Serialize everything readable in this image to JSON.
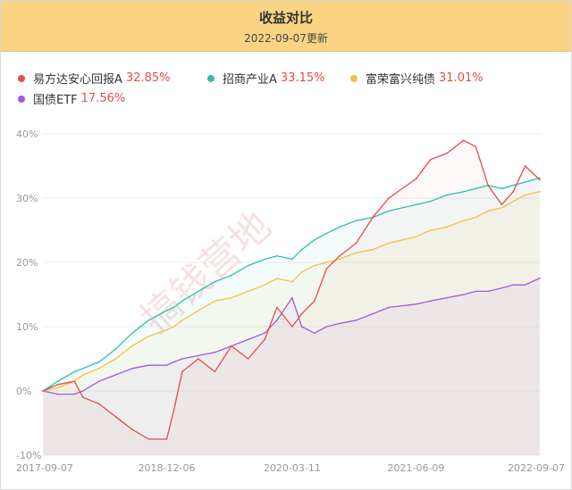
{
  "header": {
    "title": "收益对比",
    "subtitle": "2022-09-07更新"
  },
  "watermark": "搞钱营地",
  "legend": [
    {
      "name": "易方达安心回报A",
      "value": "32.85%",
      "color": "#e84b4b"
    },
    {
      "name": "招商产业A",
      "value": "33.15%",
      "color": "#2cc0b0"
    },
    {
      "name": "富荣富兴纯债",
      "value": "31.01%",
      "color": "#f2c240"
    },
    {
      "name": "国债ETF",
      "value": "17.56%",
      "color": "#a05ae0"
    }
  ],
  "chart_data": {
    "type": "line",
    "x_ticks": [
      "2017-09-07",
      "2018-12-06",
      "2020-03-11",
      "2021-06-09",
      "2022-09-07"
    ],
    "y_ticks": [
      "40%",
      "30%",
      "20%",
      "10%",
      "0%",
      "-10%"
    ],
    "ylim": [
      -10,
      40
    ],
    "x": [
      "2017-09-07",
      "2017-11-01",
      "2018-01-01",
      "2018-02-01",
      "2018-04-01",
      "2018-06-01",
      "2018-08-01",
      "2018-10-01",
      "2018-12-06",
      "2019-01-01",
      "2019-02-01",
      "2019-04-01",
      "2019-06-01",
      "2019-08-01",
      "2019-10-01",
      "2019-12-01",
      "2020-01-15",
      "2020-03-11",
      "2020-04-15",
      "2020-06-01",
      "2020-07-15",
      "2020-09-01",
      "2020-11-01",
      "2021-01-01",
      "2021-03-01",
      "2021-06-09",
      "2021-08-01",
      "2021-10-01",
      "2021-12-01",
      "2022-01-15",
      "2022-03-01",
      "2022-04-20",
      "2022-06-01",
      "2022-07-15",
      "2022-09-07"
    ],
    "series": [
      {
        "name": "易方达安心回报A",
        "color": "#e84b4b",
        "values": [
          0,
          1,
          1.5,
          -1,
          -2,
          -4,
          -6,
          -7.5,
          -7.5,
          -3,
          3,
          5,
          3,
          7,
          5,
          8,
          13,
          10,
          12,
          14,
          19,
          21,
          23,
          27,
          30,
          33,
          36,
          37,
          39,
          38,
          32,
          29,
          31,
          35,
          32.85
        ]
      },
      {
        "name": "招商产业A",
        "color": "#2cc0b0",
        "values": [
          0,
          1.5,
          3,
          3.5,
          4.5,
          6.5,
          9,
          11,
          12.5,
          13,
          14,
          15.5,
          17,
          18,
          19.5,
          20.5,
          21,
          20.5,
          22,
          23.5,
          24.5,
          25.5,
          26.5,
          27,
          28,
          29,
          29.5,
          30.5,
          31,
          31.5,
          32,
          31.5,
          32,
          32.5,
          33.15
        ]
      },
      {
        "name": "富荣富兴纯债",
        "color": "#f2c240",
        "values": [
          0,
          0.5,
          1.5,
          2.5,
          3.5,
          5,
          7,
          8.5,
          9.5,
          10,
          11,
          12.5,
          14,
          14.5,
          15.5,
          16.5,
          17.5,
          17,
          18.5,
          19.5,
          20,
          20.5,
          21.5,
          22,
          23,
          24,
          25,
          25.5,
          26.5,
          27,
          28,
          28.5,
          29.5,
          30.5,
          31.01
        ]
      },
      {
        "name": "国债ETF",
        "color": "#a05ae0",
        "values": [
          0,
          -0.5,
          -0.5,
          0,
          1.5,
          2.5,
          3.5,
          4,
          4,
          4.5,
          5,
          5.5,
          6,
          7,
          8,
          9,
          11,
          14.5,
          10,
          9,
          10,
          10.5,
          11,
          12,
          13,
          13.5,
          14,
          14.5,
          15,
          15.5,
          15.5,
          16,
          16.5,
          16.5,
          17.56
        ]
      }
    ]
  }
}
